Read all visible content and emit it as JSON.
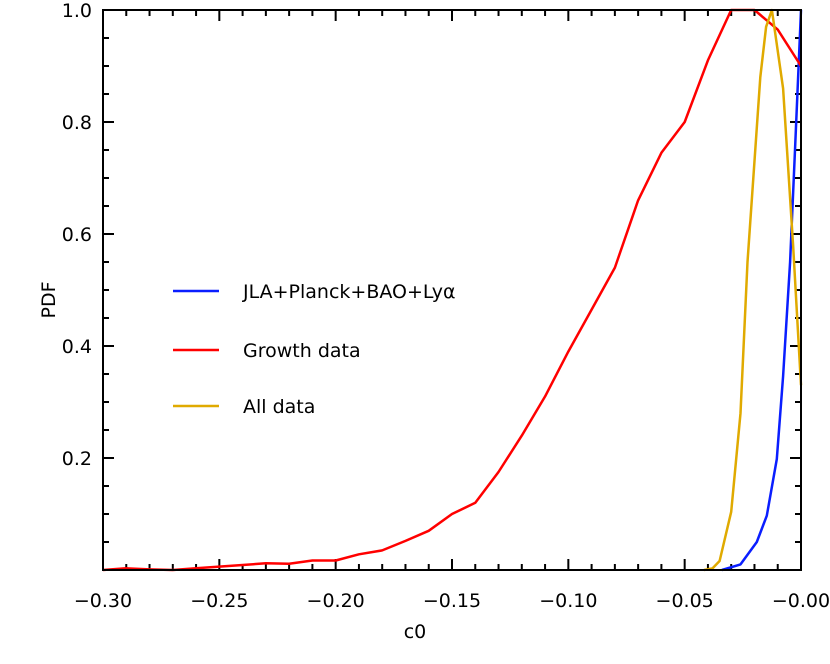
{
  "chart_data": {
    "type": "line",
    "title": "",
    "xlabel": "c0",
    "ylabel": "PDF",
    "xlim": [
      -0.3,
      0.0
    ],
    "ylim": [
      0.0,
      1.0
    ],
    "x_ticks": [
      -0.3,
      -0.25,
      -0.2,
      -0.15,
      -0.1,
      -0.05,
      0.0
    ],
    "x_tick_labels": [
      "−0.30",
      "−0.25",
      "−0.20",
      "−0.15",
      "−0.10",
      "−0.05",
      "−0.00"
    ],
    "y_ticks": [
      0.2,
      0.4,
      0.6,
      0.8,
      1.0
    ],
    "y_tick_labels": [
      "0.2",
      "0.4",
      "0.6",
      "0.8",
      "1.0"
    ],
    "grid": false,
    "legend_placement": "center-left",
    "series": [
      {
        "name": "JLA+Planck+BAO+Lyα",
        "color": "#0a1eff",
        "x": [
          -0.034,
          -0.026,
          -0.019,
          -0.0147,
          -0.0104,
          -0.0077,
          -0.0047,
          -0.0026,
          0.0
        ],
        "y": [
          0.0,
          0.01,
          0.05,
          0.097,
          0.198,
          0.346,
          0.55,
          0.75,
          1.0
        ]
      },
      {
        "name": "Growth data",
        "color": "#ff0000",
        "x": [
          -0.3,
          -0.29,
          -0.28,
          -0.27,
          -0.26,
          -0.25,
          -0.24,
          -0.23,
          -0.22,
          -0.21,
          -0.2,
          -0.19,
          -0.18,
          -0.17,
          -0.16,
          -0.15,
          -0.14,
          -0.13,
          -0.12,
          -0.11,
          -0.1,
          -0.09,
          -0.08,
          -0.07,
          -0.06,
          -0.05,
          -0.04,
          -0.03,
          -0.02,
          -0.01,
          0.0
        ],
        "y": [
          0.0,
          0.003,
          0.001,
          0.0,
          0.003,
          0.006,
          0.009,
          0.012,
          0.011,
          0.017,
          0.017,
          0.028,
          0.035,
          0.052,
          0.07,
          0.1,
          0.12,
          0.175,
          0.24,
          0.31,
          0.39,
          0.465,
          0.54,
          0.66,
          0.745,
          0.8,
          0.91,
          1.0,
          1.0,
          0.965,
          0.9
        ]
      },
      {
        "name": "All data",
        "color": "#e0aa00",
        "x": [
          -0.0417,
          -0.038,
          -0.035,
          -0.03,
          -0.026,
          -0.023,
          -0.0175,
          -0.015,
          -0.0125,
          -0.0077,
          -0.0034,
          0.0
        ],
        "y": [
          0.0,
          0.003,
          0.016,
          0.104,
          0.28,
          0.55,
          0.88,
          0.97,
          1.0,
          0.86,
          0.58,
          0.33
        ]
      }
    ]
  }
}
